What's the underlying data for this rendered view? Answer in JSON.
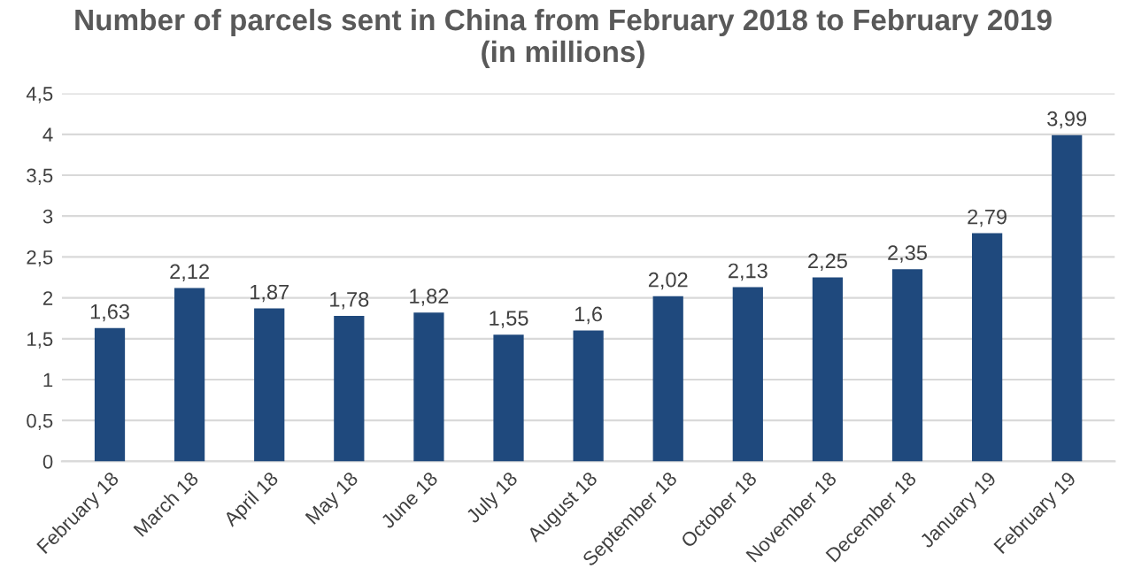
{
  "chart_data": {
    "type": "bar",
    "title": "Number of parcels sent in China from February 2018 to February 2019\n(in millions)",
    "categories": [
      "February 18",
      "March 18",
      "April 18",
      "May 18",
      "June 18",
      "July 18",
      "August 18",
      "September 18",
      "October 18",
      "November 18",
      "December 18",
      "January 19",
      "February 19"
    ],
    "values": [
      1.63,
      2.12,
      1.87,
      1.78,
      1.82,
      1.55,
      1.6,
      2.02,
      2.13,
      2.25,
      2.35,
      2.79,
      3.99
    ],
    "value_labels": [
      "1,63",
      "2,12",
      "1,87",
      "1,78",
      "1,82",
      "1,55",
      "1,6",
      "2,02",
      "2,13",
      "2,25",
      "2,35",
      "2,79",
      "3,99"
    ],
    "color": "#1f497d",
    "ylim": [
      0,
      4.5
    ],
    "yticks": [
      0,
      {
        "value": 0.5,
        "label": "0,5"
      },
      1,
      {
        "value": 1.5,
        "label": "1,5"
      },
      2,
      {
        "value": 2.5,
        "label": "2,5"
      },
      3,
      {
        "value": 3.5,
        "label": "3,5"
      },
      4,
      {
        "value": 4.5,
        "label": "4,5"
      }
    ],
    "grid": "y",
    "legend": false
  }
}
